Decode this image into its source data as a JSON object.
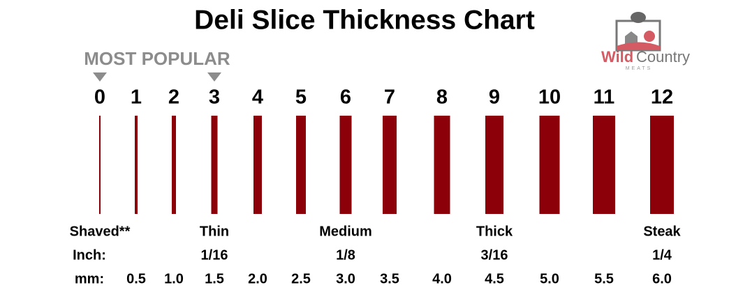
{
  "title": "Deli Slice Thickness Chart",
  "logo": {
    "brand_first": "Wild",
    "brand_second": "Country",
    "tagline": "MEATS"
  },
  "callout": "MOST POPULAR",
  "settings": [
    "0",
    "1",
    "2",
    "3",
    "4",
    "5",
    "6",
    "7",
    "8",
    "9",
    "10",
    "11",
    "12"
  ],
  "rows": [
    {
      "label": null,
      "cells": [
        "Shaved**",
        null,
        null,
        "Thin",
        null,
        null,
        "Medium",
        null,
        null,
        "Thick",
        null,
        null,
        "Steak"
      ]
    },
    {
      "label": "Inch:",
      "cells": [
        null,
        null,
        null,
        "1/16",
        null,
        null,
        "1/8",
        null,
        null,
        "3/16",
        null,
        null,
        "1/4"
      ]
    },
    {
      "label": "mm:",
      "cells": [
        null,
        "0.5",
        "1.0",
        "1.5",
        "2.0",
        "2.5",
        "3.0",
        "3.5",
        "4.0",
        "4.5",
        "5.0",
        "5.5",
        "6.0"
      ]
    }
  ]
}
